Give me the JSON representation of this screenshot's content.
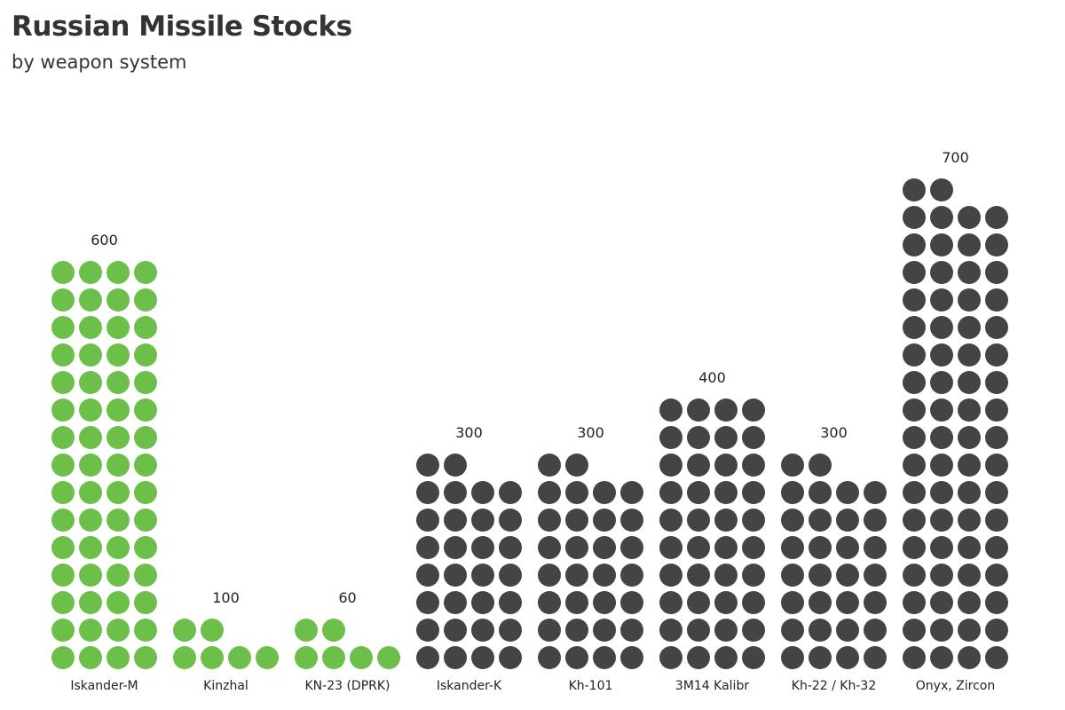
{
  "chart_data": {
    "type": "bar",
    "title": "Russian Missile Stocks",
    "subtitle": "by weapon system",
    "categories": [
      "Iskander-M",
      "Kinzhal",
      "KN-23 (DPRK)",
      "Iskander-K",
      "Kh-101",
      "3M14 Kalibr",
      "Kh-22 / Kh-32",
      "Onyx, Zircon"
    ],
    "values": [
      600,
      100,
      60,
      300,
      300,
      400,
      300,
      700
    ],
    "value_labels": [
      "600",
      "100",
      "60",
      "300",
      "300",
      "400",
      "300",
      "700"
    ],
    "dots": [
      60,
      6,
      6,
      30,
      30,
      40,
      30,
      70
    ],
    "colors": [
      "#6cc04a",
      "#6cc04a",
      "#6cc04a",
      "#444444",
      "#444444",
      "#444444",
      "#444444",
      "#444444"
    ],
    "grid": false,
    "legend": "none"
  }
}
